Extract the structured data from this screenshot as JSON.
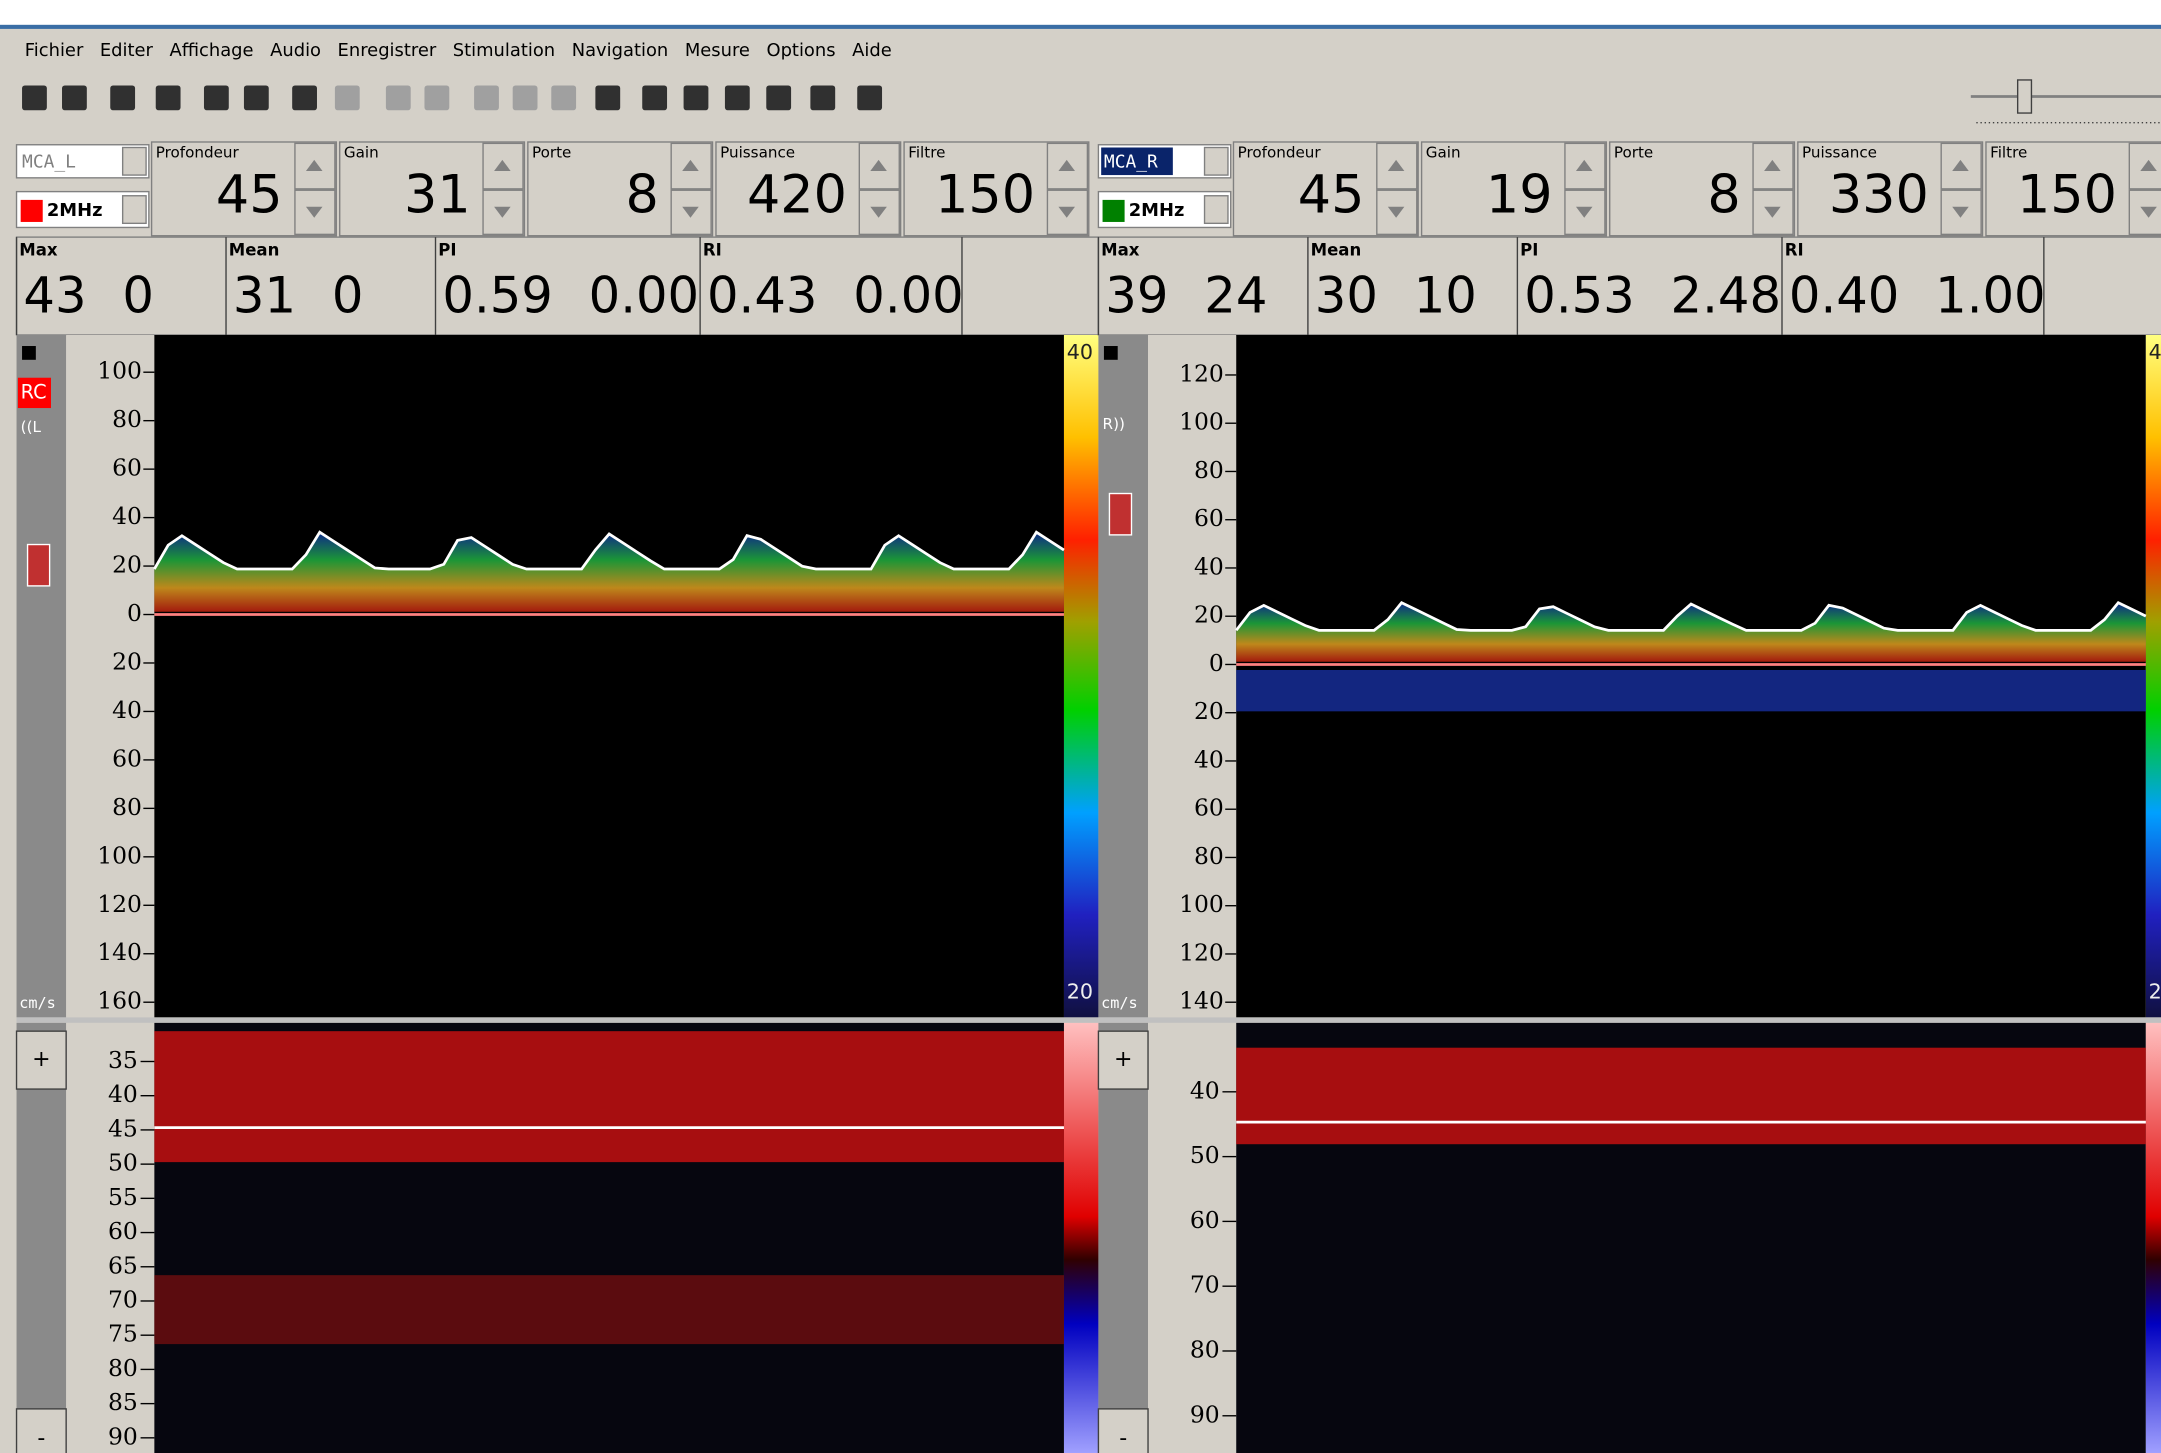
{
  "menu": [
    "Fichier",
    "Editer",
    "Affichage",
    "Audio",
    "Enregistrer",
    "Stimulation",
    "Navigation",
    "Mesure",
    "Options",
    "Aide"
  ],
  "channels": [
    {
      "name": "MCA_L",
      "active": false,
      "probe": "2MHz",
      "probe_color": "#ff0000",
      "controls": [
        {
          "label": "Profondeur",
          "value": "45"
        },
        {
          "label": "Gain",
          "value": "31"
        },
        {
          "label": "Porte",
          "value": "8"
        },
        {
          "label": "Puissance",
          "value": "420"
        },
        {
          "label": "Filtre",
          "value": "150"
        }
      ],
      "measures": [
        {
          "label": "Max",
          "values": [
            "43",
            "0"
          ]
        },
        {
          "label": "Mean",
          "values": [
            "31",
            "0"
          ]
        },
        {
          "label": "PI",
          "values": [
            "0.59",
            "0.00"
          ]
        },
        {
          "label": "RI",
          "values": [
            "0.43",
            "0.00"
          ]
        }
      ],
      "flags": [
        "RC",
        "((L"
      ],
      "spectrum_axis": [
        "100",
        "80",
        "60",
        "40",
        "20",
        "0",
        "20",
        "40",
        "60",
        "80",
        "100",
        "120",
        "140",
        "160"
      ],
      "units": "cm/s",
      "scale_top": "40",
      "scale_bottom": "20",
      "mmode_axis": [
        "35",
        "40",
        "45",
        "50",
        "55",
        "60",
        "65",
        "70",
        "75",
        "80",
        "85",
        "90"
      ],
      "mmode_buttons": [
        "+",
        "-"
      ]
    },
    {
      "name": "MCA_R",
      "active": true,
      "probe": "2MHz",
      "probe_color": "#008000",
      "controls": [
        {
          "label": "Profondeur",
          "value": "45"
        },
        {
          "label": "Gain",
          "value": "19"
        },
        {
          "label": "Porte",
          "value": "8"
        },
        {
          "label": "Puissance",
          "value": "330"
        },
        {
          "label": "Filtre",
          "value": "150"
        }
      ],
      "measures": [
        {
          "label": "Max",
          "values": [
            "39",
            "24"
          ]
        },
        {
          "label": "Mean",
          "values": [
            "30",
            "10"
          ]
        },
        {
          "label": "PI",
          "values": [
            "0.53",
            "2.48"
          ]
        },
        {
          "label": "RI",
          "values": [
            "0.40",
            "1.00"
          ]
        }
      ],
      "flags": [
        "R))"
      ],
      "spectrum_axis": [
        "120",
        "100",
        "80",
        "60",
        "40",
        "20",
        "0",
        "20",
        "40",
        "60",
        "80",
        "100",
        "120",
        "140"
      ],
      "units": "cm/s",
      "scale_top": "4",
      "scale_bottom": "2",
      "mmode_axis": [
        "40",
        "50",
        "60",
        "70",
        "80",
        "90"
      ],
      "mmode_buttons": [
        "+",
        "-"
      ]
    }
  ]
}
